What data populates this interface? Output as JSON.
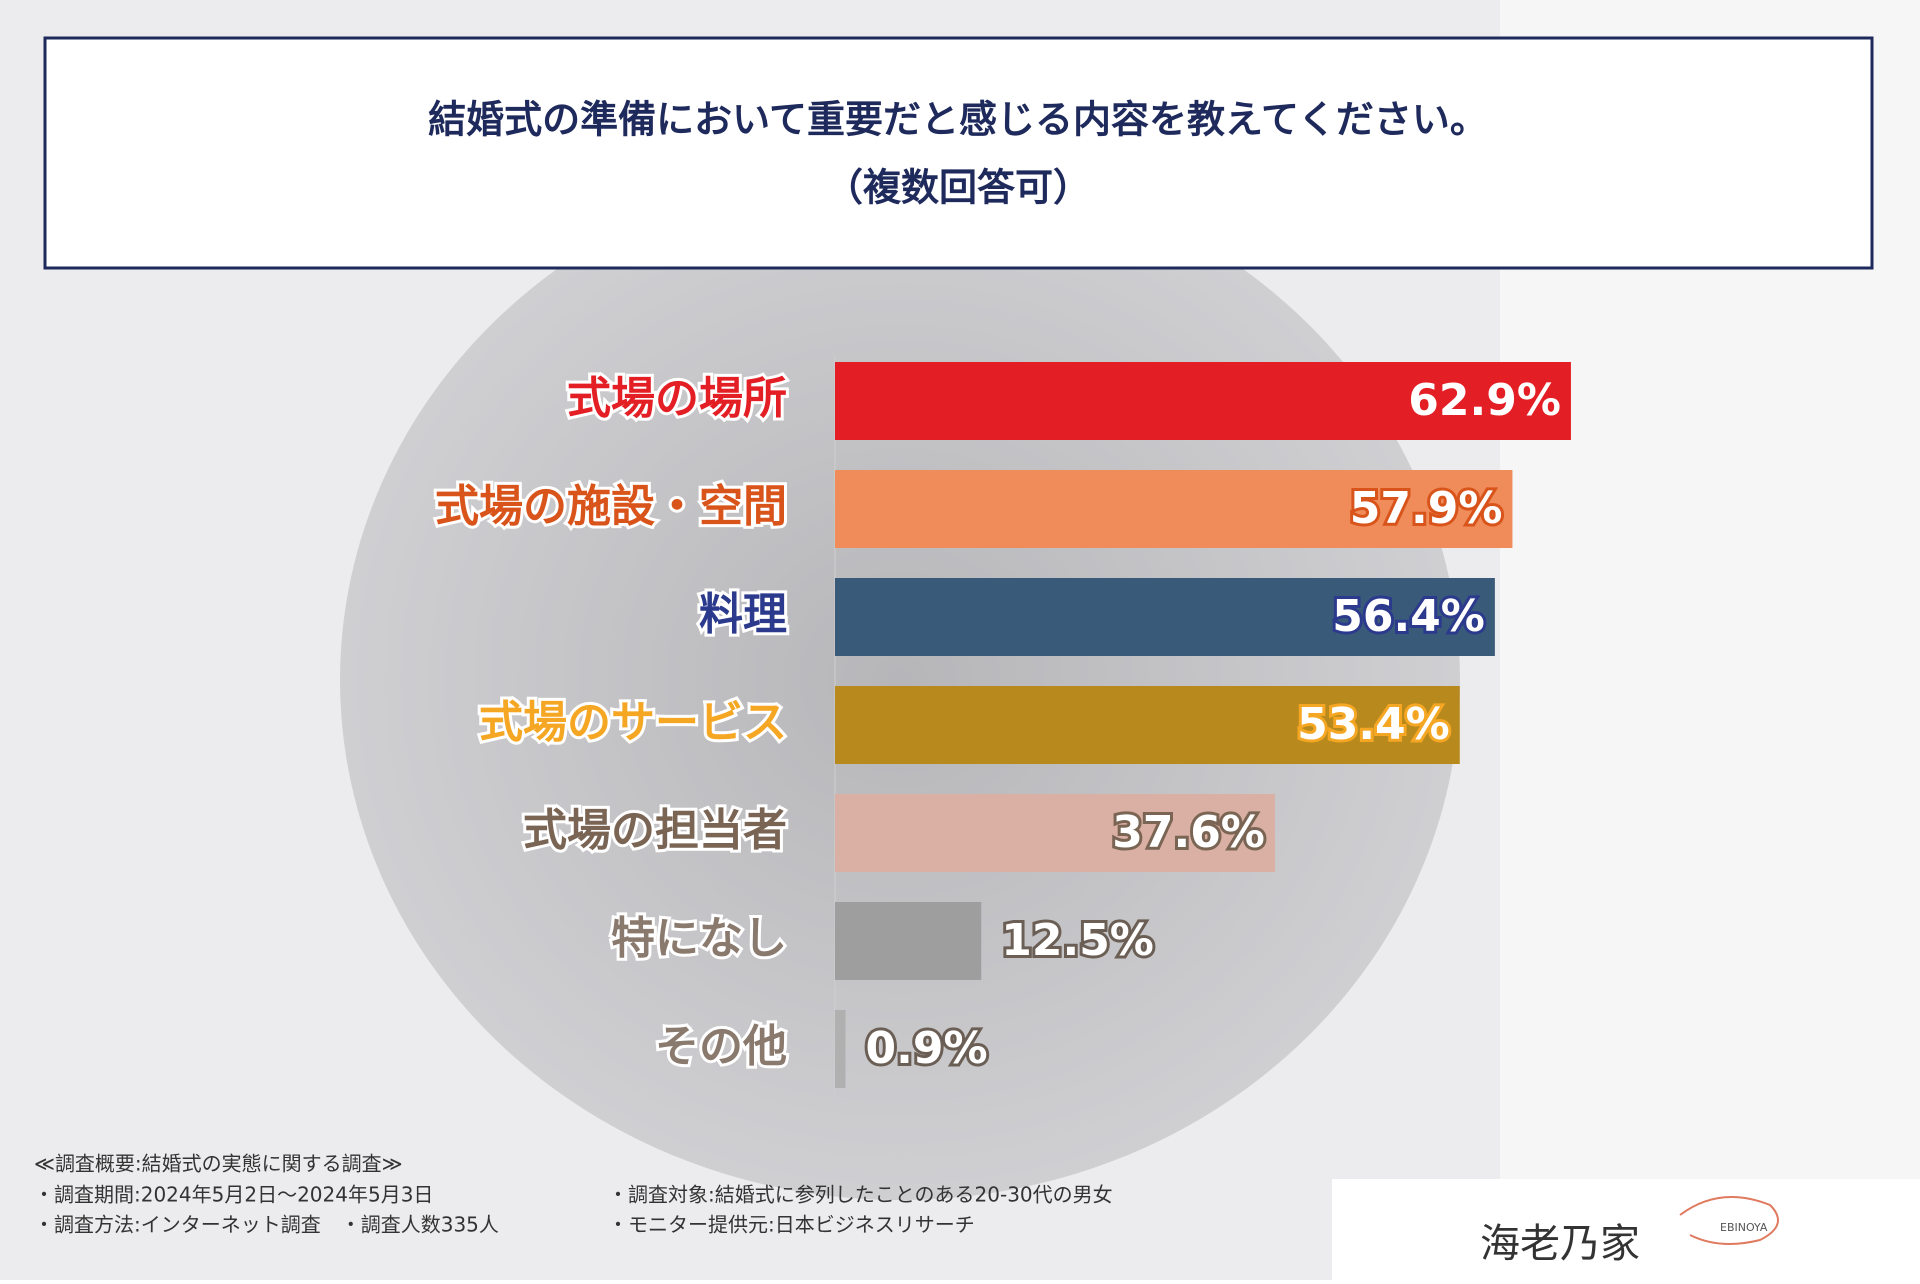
{
  "chart_data": {
    "type": "hbar",
    "title": "結婚式の準備において重要だと感じる内容を教えてください。",
    "subtitle": "（複数回答可）",
    "categories": [
      "式場の場所",
      "式場の施設・空間",
      "料理",
      "式場のサービス",
      "式場の担当者",
      "特になし",
      "その他"
    ],
    "values": [
      62.9,
      57.9,
      56.4,
      53.4,
      37.6,
      12.5,
      0.9
    ],
    "value_labels": [
      "62.9%",
      "57.9%",
      "56.4%",
      "53.4%",
      "37.6%",
      "12.5%",
      "0.9%"
    ],
    "colors": [
      "#e31e24",
      "#ef8c5a",
      "#3a5a7a",
      "#b8891c",
      "#d9b0a3",
      "#9e9e9e",
      "#b0b0b0"
    ],
    "label_colors": [
      "#e31e24",
      "#d9541a",
      "#2b3a8c",
      "#f5a623",
      "#7a6555",
      "#8a7a6e",
      "#8a7a6e"
    ]
  },
  "footer": {
    "heading": "≪調査概要:結婚式の実態に関する調査≫",
    "period": "・調査期間:2024年5月2日〜2024年5月3日",
    "method": "・調査方法:インターネット調査　・調査人数335人",
    "target": "・調査対象:結婚式に参列したことのある20-30代の男女",
    "provider": "・モニター提供元:日本ビジネスリサーチ"
  },
  "logo": {
    "name": "海老乃家",
    "sub": "EBINOYA"
  }
}
